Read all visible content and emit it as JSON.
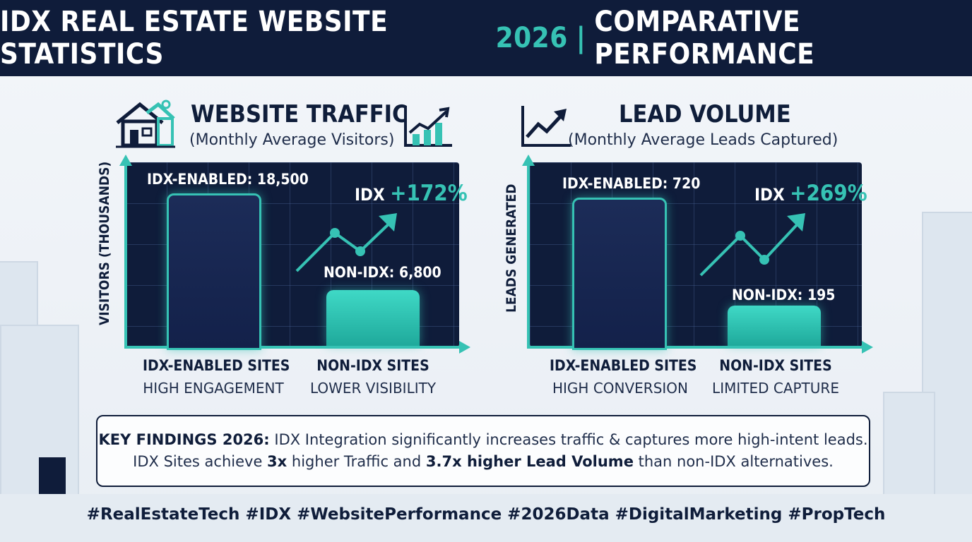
{
  "header": {
    "title_part1": "IDX REAL ESTATE WEBSITE STATISTICS",
    "title_year": "2026",
    "title_separator": "|",
    "title_part2": "COMPARATIVE PERFORMANCE"
  },
  "colors": {
    "navy": "#0f1c3a",
    "teal": "#36c2b4",
    "teal_bright": "#3fd9c6"
  },
  "chart_data": [
    {
      "type": "bar",
      "title": "WEBSITE TRAFFIC",
      "subtitle": "(Monthly Average Visitors)",
      "ylabel": "VISITORS (THOUSANDS)",
      "categories": [
        "IDX-ENABLED SITES",
        "NON-IDX SITES"
      ],
      "category_subtitles": [
        "HIGH ENGAGEMENT",
        "LOWER VISIBILITY"
      ],
      "values": [
        18500,
        6800
      ],
      "data_labels": [
        "IDX-ENABLED: 18,500",
        "NON-IDX: 6,800"
      ],
      "annotation": {
        "prefix": "IDX",
        "value": "+172%"
      },
      "grid": true,
      "icons": [
        "house-icon",
        "growth-chart-icon"
      ]
    },
    {
      "type": "bar",
      "title": "LEAD VOLUME",
      "subtitle": "(Monthly Average Leads Captured)",
      "ylabel": "LEADS GENERATED",
      "categories": [
        "IDX-ENABLED SITES",
        "NON-IDX SITES"
      ],
      "category_subtitles": [
        "HIGH CONVERSION",
        "LIMITED CAPTURE"
      ],
      "values": [
        720,
        195
      ],
      "data_labels": [
        "IDX-ENABLED: 720",
        "NON-IDX: 195"
      ],
      "annotation": {
        "prefix": "IDX",
        "value": "+269%"
      },
      "grid": true,
      "icons": [
        "trend-arrow-icon"
      ]
    }
  ],
  "findings": {
    "heading": "KEY FINDINGS 2026:",
    "line1": "IDX Integration significantly increases traffic & captures more high-intent leads.",
    "line2_a": "IDX Sites achieve",
    "line2_b": "3x",
    "line2_c": "higher Traffic and",
    "line2_d": "3.7x higher Lead Volume",
    "line2_e": "than non-IDX alternatives."
  },
  "hashtags": "#RealEstateTech #IDX #WebsitePerformance #2026Data #DigitalMarketing #PropTech"
}
